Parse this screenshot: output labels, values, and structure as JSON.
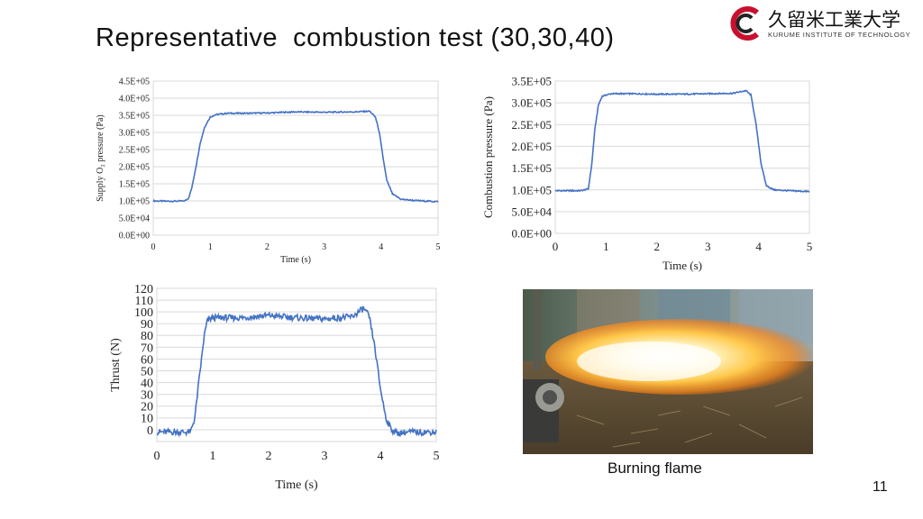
{
  "slide": {
    "title": "Representative  combustion test (30,30,40)",
    "page_number": "11",
    "photo_caption": "Burning flame"
  },
  "logo": {
    "name": "久留米工業大学",
    "subtitle": "KURUME INSTITUTE OF TECHNOLOGY",
    "brand_color": "#c8102e"
  },
  "colors": {
    "series": "#4472c4",
    "grid": "#d9d9d9",
    "axis": "#808080"
  },
  "chart_data": [
    {
      "type": "line",
      "ylabel": "Supply O₂ pressure (Pa)",
      "xlabel": "Time (s)",
      "xlim": [
        0,
        5
      ],
      "ylim": [
        0,
        450000
      ],
      "x_ticks": [
        "0",
        "1",
        "2",
        "3",
        "4",
        "5"
      ],
      "y_ticks": [
        "0.0E+00",
        "5.0E+04",
        "1.0E+05",
        "1.5E+05",
        "2.0E+05",
        "2.5E+05",
        "3.0E+05",
        "3.5E+05",
        "4.0E+05",
        "4.5E+05"
      ],
      "grid": true,
      "series": [
        {
          "x": [
            0,
            0.3,
            0.55,
            0.62,
            0.68,
            0.75,
            0.82,
            0.9,
            1.0,
            1.1,
            1.3,
            1.6,
            2.0,
            2.5,
            3.0,
            3.5,
            3.8,
            3.9,
            3.97,
            4.03,
            4.1,
            4.2,
            4.35,
            4.6,
            5.0
          ],
          "y": [
            100000,
            99000,
            100000,
            108000,
            140000,
            200000,
            265000,
            315000,
            345000,
            352000,
            356000,
            356000,
            357000,
            360000,
            359000,
            360000,
            362000,
            345000,
            300000,
            230000,
            160000,
            120000,
            105000,
            101000,
            98000
          ]
        }
      ]
    },
    {
      "type": "line",
      "ylabel": "Combustion pressure (Pa)",
      "xlabel": "Time (s)",
      "xlim": [
        0,
        5
      ],
      "ylim": [
        0,
        350000
      ],
      "x_ticks": [
        "0",
        "1",
        "2",
        "3",
        "4",
        "5"
      ],
      "y_ticks": [
        "0.0E+00",
        "5.0E+04",
        "1.0E+05",
        "1.5E+05",
        "2.0E+05",
        "2.5E+05",
        "3.0E+05",
        "3.5E+05"
      ],
      "grid": true,
      "series": [
        {
          "x": [
            0,
            0.5,
            0.65,
            0.72,
            0.78,
            0.85,
            0.92,
            1.0,
            1.1,
            1.5,
            2.0,
            2.5,
            3.0,
            3.5,
            3.75,
            3.85,
            3.95,
            4.05,
            4.15,
            4.3,
            4.6,
            5.0
          ],
          "y": [
            98000,
            98000,
            102000,
            160000,
            240000,
            295000,
            315000,
            318000,
            321000,
            321000,
            320000,
            320000,
            321000,
            322000,
            328000,
            318000,
            250000,
            160000,
            110000,
            100000,
            98000,
            96000
          ]
        }
      ]
    },
    {
      "type": "line",
      "ylabel": "Thrust (N)",
      "xlabel": "Time (s)",
      "xlim": [
        0,
        5
      ],
      "ylim": [
        -10,
        120
      ],
      "x_ticks": [
        "0",
        "1",
        "2",
        "3",
        "4",
        "5"
      ],
      "y_ticks": [
        "0",
        "10",
        "20",
        "30",
        "40",
        "50",
        "60",
        "70",
        "80",
        "90",
        "100",
        "110",
        "120"
      ],
      "grid": true,
      "series": [
        {
          "x": [
            0,
            0.3,
            0.6,
            0.68,
            0.75,
            0.8,
            0.85,
            0.9,
            0.95,
            1.0,
            1.5,
            2.0,
            2.5,
            3.0,
            3.5,
            3.7,
            3.8,
            3.9,
            4.0,
            4.1,
            4.2,
            4.3,
            4.5,
            5.0
          ],
          "y": [
            -2,
            -2,
            -2,
            10,
            40,
            60,
            80,
            92,
            94,
            95,
            95,
            97,
            95,
            94,
            96,
            103,
            96,
            70,
            35,
            10,
            0,
            -3,
            -2,
            -2
          ]
        }
      ]
    }
  ]
}
